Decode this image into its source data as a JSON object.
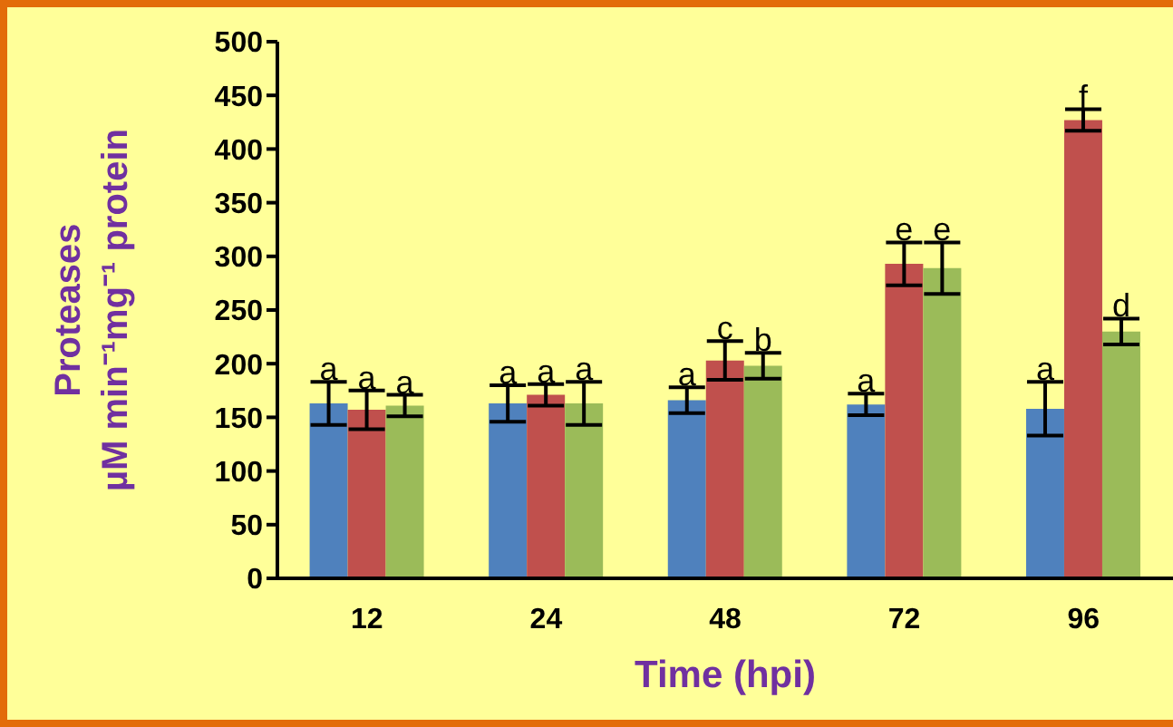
{
  "chart_data": {
    "type": "bar",
    "xlabel": "Time (hpi)",
    "ylabel": "Proteases\nµM min⁻¹mg⁻¹ protein",
    "categories": [
      "12",
      "24",
      "48",
      "72",
      "96"
    ],
    "series": [
      {
        "color": "#4f81bd",
        "values": [
          163,
          163,
          166,
          162,
          158
        ],
        "errors": [
          20,
          17,
          12,
          10,
          25
        ],
        "value_labels": [
          "a",
          "a",
          "a",
          "a",
          "a"
        ]
      },
      {
        "color": "#c0504d",
        "values": [
          157,
          171,
          203,
          293,
          427
        ],
        "errors": [
          18,
          10,
          18,
          20,
          10
        ],
        "value_labels": [
          "a",
          "a",
          "c",
          "e",
          "f"
        ]
      },
      {
        "color": "#9bbb59",
        "values": [
          161,
          163,
          198,
          289,
          230
        ],
        "errors": [
          10,
          20,
          12,
          24,
          12
        ],
        "value_labels": [
          "a",
          "a",
          "b",
          "e",
          "d"
        ]
      }
    ],
    "ylim": [
      0,
      500
    ],
    "yticks": [
      0,
      50,
      100,
      150,
      200,
      250,
      300,
      350,
      400,
      450,
      500
    ],
    "grid": false,
    "legend": false
  }
}
